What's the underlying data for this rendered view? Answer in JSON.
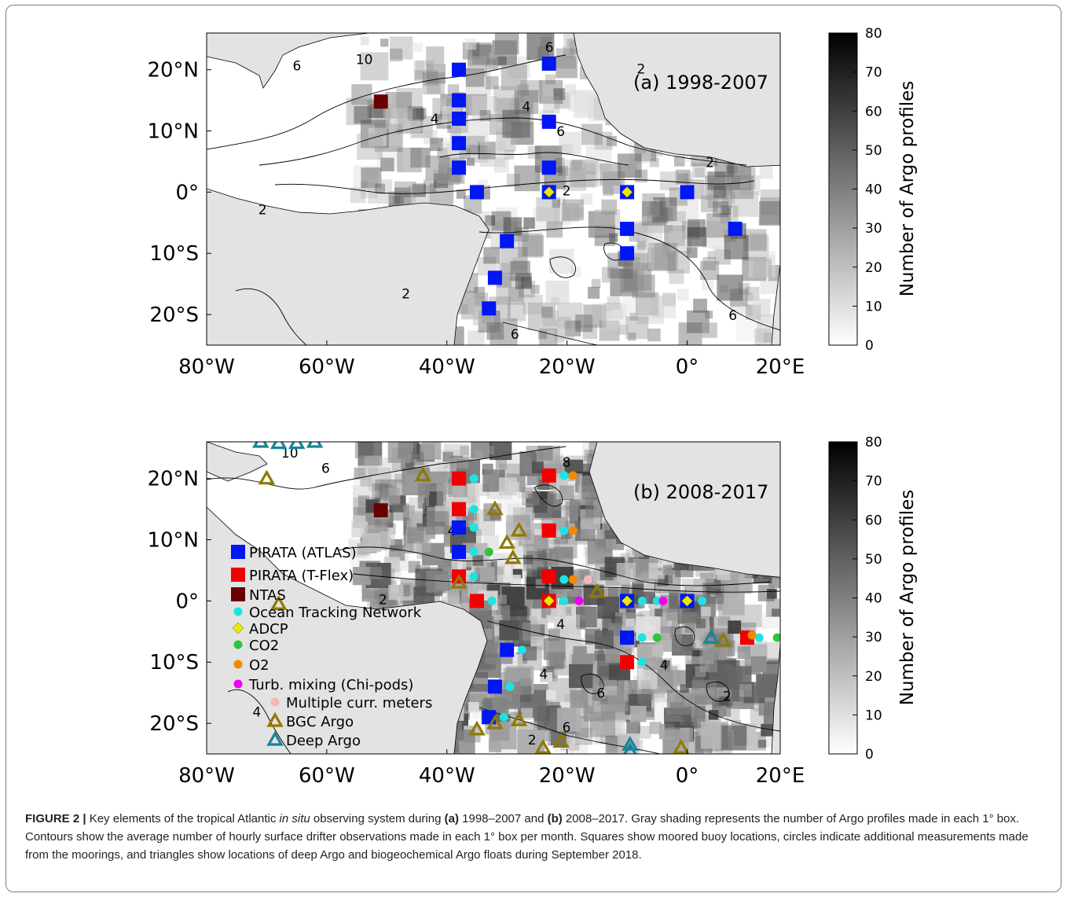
{
  "colors": {
    "land": "#e3e3e3",
    "pirata_atlas": "#0016f5",
    "pirata_tflex": "#f00000",
    "ntas": "#6b0000",
    "otn": "#1ee3e3",
    "adcp": "#e8e800",
    "co2": "#2ec53a",
    "o2": "#f08a00",
    "chipods": "#f000f0",
    "curr_meters": "#f2b8b8",
    "bgc_argo": "#8f7a00",
    "deep_argo": "#17859a"
  },
  "panels": [
    {
      "title": "(a) 1998-2007",
      "x_ticks": [
        "80°W",
        "60°W",
        "40°W",
        "20°W",
        "0°",
        "20°E"
      ],
      "y_ticks": [
        "20°N",
        "10°N",
        "0°",
        "10°S",
        "20°S"
      ],
      "contour_labels": [
        "2",
        "4",
        "6",
        "8",
        "10"
      ]
    },
    {
      "title": "(b) 2008-2017",
      "x_ticks": [
        "80°W",
        "60°W",
        "40°W",
        "20°W",
        "0°",
        "20°E"
      ],
      "y_ticks": [
        "20°N",
        "10°N",
        "0°",
        "10°S",
        "20°S"
      ],
      "contour_labels": [
        "2",
        "4",
        "6",
        "8",
        "10"
      ]
    }
  ],
  "colorbar": {
    "label": "Number of Argo profiles",
    "ticks": [
      "80",
      "70",
      "60",
      "50",
      "40",
      "30",
      "20",
      "10",
      "0"
    ]
  },
  "legend": [
    {
      "key": "pirata_atlas",
      "label": "PIRATA (ATLAS)",
      "symbol": "square"
    },
    {
      "key": "pirata_tflex",
      "label": "PIRATA (T-Flex)",
      "symbol": "square"
    },
    {
      "key": "ntas",
      "label": "NTAS",
      "symbol": "square"
    },
    {
      "key": "otn",
      "label": "Ocean Tracking Network",
      "symbol": "circle"
    },
    {
      "key": "adcp",
      "label": "ADCP",
      "symbol": "diamond"
    },
    {
      "key": "co2",
      "label": "CO2",
      "symbol": "circle"
    },
    {
      "key": "o2",
      "label": "O2",
      "symbol": "circle"
    },
    {
      "key": "chipods",
      "label": "Turb. mixing (Chi-pods)",
      "symbol": "circle"
    },
    {
      "key": "curr_meters",
      "label": "Multiple curr. meters",
      "symbol": "circle"
    },
    {
      "key": "bgc_argo",
      "label": "BGC Argo",
      "symbol": "triangle"
    },
    {
      "key": "deep_argo",
      "label": "Deep Argo",
      "symbol": "triangle"
    }
  ],
  "markers_a": {
    "pirata_atlas": [
      [
        -38,
        20
      ],
      [
        -23,
        21
      ],
      [
        -38,
        15
      ],
      [
        -38,
        12
      ],
      [
        -23,
        11.5
      ],
      [
        -38,
        8
      ],
      [
        -38,
        4
      ],
      [
        -23,
        4
      ],
      [
        -35,
        0
      ],
      [
        -23,
        0
      ],
      [
        -10,
        0
      ],
      [
        0,
        0
      ],
      [
        -30,
        -8
      ],
      [
        -10,
        -6
      ],
      [
        8,
        -6
      ],
      [
        -10,
        -10
      ],
      [
        -32,
        -14
      ],
      [
        -33,
        -19
      ]
    ],
    "ntas": [
      [
        -51,
        14.8
      ]
    ],
    "adcp": [
      [
        -23,
        0
      ],
      [
        -10,
        0
      ]
    ]
  },
  "markers_b": {
    "pirata_tflex": [
      [
        -38,
        20
      ],
      [
        -23,
        20.5
      ],
      [
        -38,
        15
      ],
      [
        -23,
        11.5
      ],
      [
        -38,
        4
      ],
      [
        -23,
        4
      ],
      [
        -35,
        0
      ],
      [
        -23,
        0
      ],
      [
        10,
        -6
      ]
    ],
    "pirata_atlas": [
      [
        -38,
        12
      ],
      [
        -38,
        8
      ],
      [
        -10,
        0
      ],
      [
        0,
        0
      ],
      [
        -30,
        -8
      ],
      [
        -10,
        -6
      ],
      [
        -32,
        -14
      ],
      [
        -33,
        -19
      ]
    ],
    "pirata_tflex_b2": [
      [
        -10,
        -10
      ]
    ],
    "ntas": [
      [
        -51,
        14.8
      ]
    ],
    "otn": [
      [
        -35.5,
        20
      ],
      [
        -35.5,
        15
      ],
      [
        -35.5,
        12
      ],
      [
        -35.5,
        8
      ],
      [
        -35.5,
        4
      ],
      [
        -20.5,
        20.5
      ],
      [
        -20.5,
        11.5
      ],
      [
        -20.5,
        3.5
      ],
      [
        -32.5,
        0
      ],
      [
        -20.5,
        0
      ],
      [
        -7.5,
        0
      ],
      [
        -5,
        0
      ],
      [
        2.5,
        0
      ],
      [
        -7.5,
        -6
      ],
      [
        -27.5,
        -8
      ],
      [
        -7.5,
        -10
      ],
      [
        -29.5,
        -14
      ],
      [
        -30.5,
        -19
      ],
      [
        12,
        -6
      ]
    ],
    "adcp": [
      [
        -23,
        0
      ],
      [
        -10,
        0
      ],
      [
        0,
        0
      ]
    ],
    "co2": [
      [
        -33,
        8
      ],
      [
        -5,
        -6
      ],
      [
        15,
        -6
      ]
    ],
    "o2": [
      [
        -19,
        20.5
      ],
      [
        -19,
        11.5
      ],
      [
        -19,
        3.5
      ],
      [
        10.8,
        -5.6
      ]
    ],
    "chipods": [
      [
        -18,
        0
      ],
      [
        -4,
        0
      ]
    ],
    "curr_meters": [
      [
        -16.5,
        3.5
      ]
    ],
    "bgc_argo": [
      [
        -70,
        20
      ],
      [
        -44,
        20.5
      ],
      [
        -32,
        15
      ],
      [
        -28,
        11.5
      ],
      [
        -30,
        9.5
      ],
      [
        -29,
        7
      ],
      [
        -38,
        3
      ],
      [
        -15,
        1.5
      ],
      [
        -68,
        -0.5
      ],
      [
        -28,
        -19.5
      ],
      [
        -35,
        -21
      ],
      [
        -32,
        -20
      ],
      [
        -24,
        -24
      ],
      [
        -21,
        -23
      ],
      [
        -9.5,
        -24.5
      ],
      [
        -1,
        -24
      ],
      [
        6,
        -6.5
      ]
    ],
    "deep_argo": [
      [
        -71,
        26
      ],
      [
        -68,
        25.8
      ],
      [
        -65,
        25.8
      ],
      [
        -62,
        26
      ],
      [
        -9.5,
        -23.5
      ],
      [
        -9.5,
        -24.5
      ],
      [
        4,
        -6
      ]
    ]
  },
  "caption": {
    "fig": "FIGURE 2 |",
    "t1": " Key elements of the tropical Atlantic ",
    "t2": "in situ",
    "t3": " observing system during ",
    "a": "(a)",
    "t4": " 1998–2007 and ",
    "b": "(b)",
    "t5": " 2008–2017. Gray shading represents the number of Argo profiles made in each 1° box. Contours show the average number of hourly surface drifter observations made in each 1° box per month. Squares show moored buoy locations, circles indicate additional measurements made from the moorings, and triangles show locations of deep Argo and biogeochemical Argo floats during September 2018."
  }
}
